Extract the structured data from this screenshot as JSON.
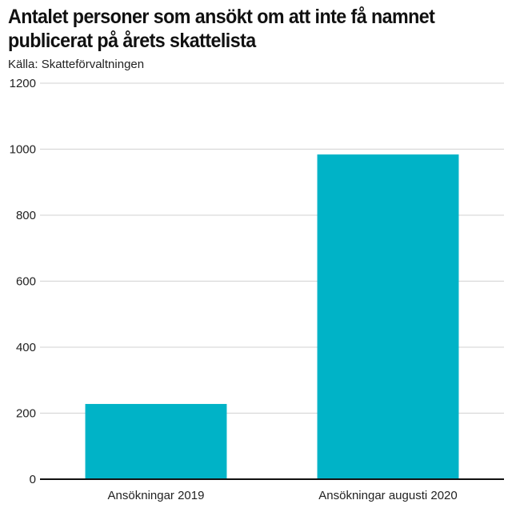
{
  "title_line1": "Antalet personer som ansökt om att inte få namnet",
  "title_line2": "publicerat på årets skattelista",
  "source": "Källa: Skatteförvaltningen",
  "colors": {
    "bar": "#00b3c7",
    "grid": "#d9d9d9",
    "axis": "#111111"
  },
  "chart_data": {
    "type": "bar",
    "title": "Antalet personer som ansökt om att inte få namnet publicerat på årets skattelista",
    "categories": [
      "Ansökningar 2019",
      "Ansökningar augusti 2020"
    ],
    "values": [
      228,
      984
    ],
    "ylim": [
      0,
      1200
    ],
    "yticks": [
      0,
      200,
      400,
      600,
      800,
      1000,
      1200
    ],
    "xlabel": "",
    "ylabel": "",
    "grid": true,
    "legend": "none"
  }
}
